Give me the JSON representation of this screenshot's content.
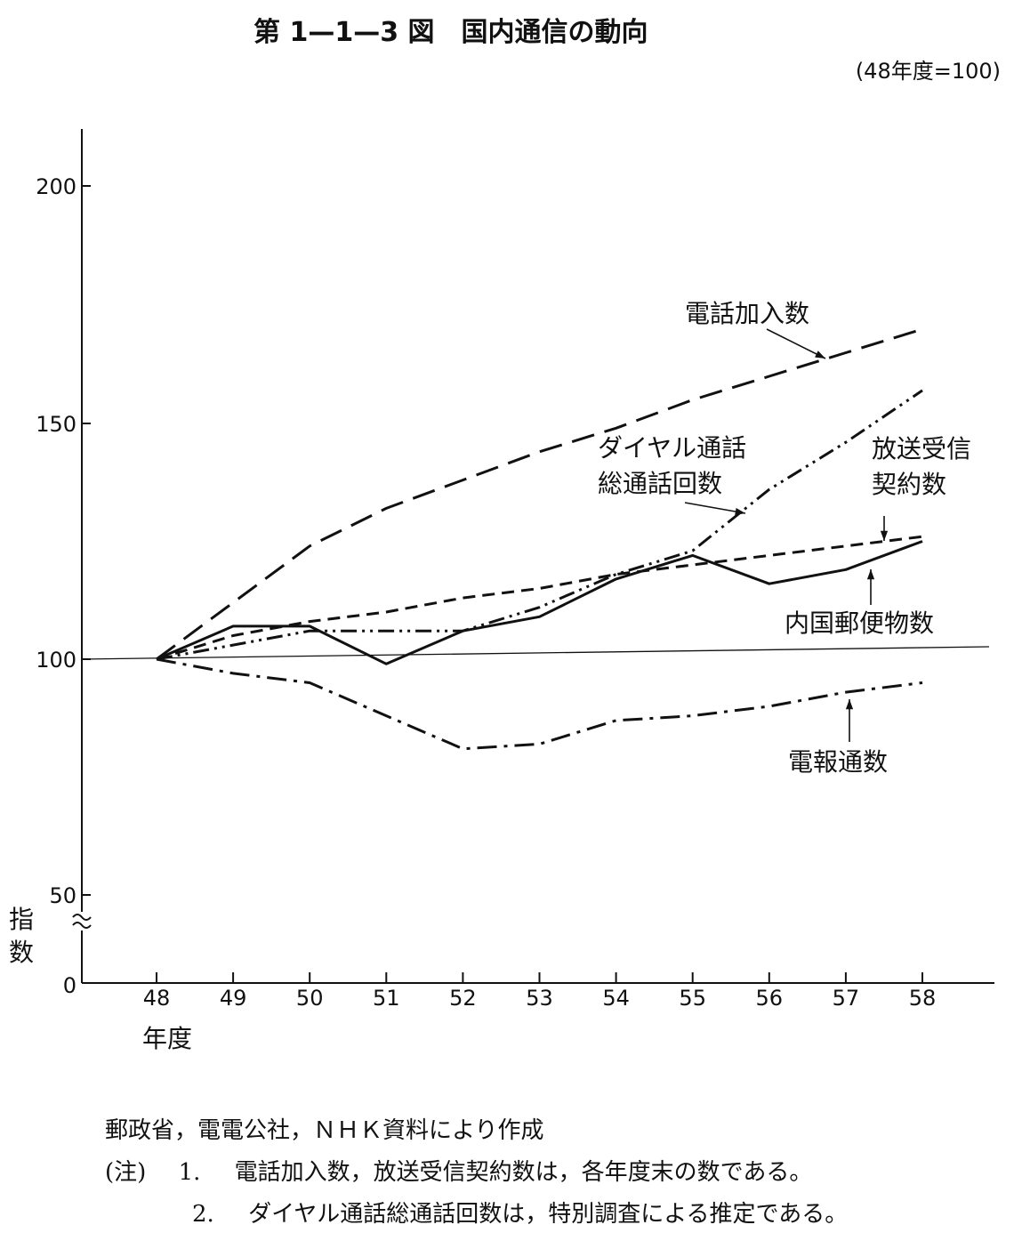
{
  "chart_data": {
    "type": "line",
    "title": "第 1—1—3 図　国内通信の動向",
    "unit_note": "(48年度=100)",
    "ylabel": "指数",
    "xlabel": "年度",
    "ylim": [
      0,
      210
    ],
    "y_ticks": [
      "0",
      "50",
      "100",
      "150",
      "200"
    ],
    "y_axis_break": true,
    "x": [
      "48",
      "49",
      "50",
      "51",
      "52",
      "53",
      "54",
      "55",
      "56",
      "57",
      "58"
    ],
    "series": [
      {
        "name": "電話加入数",
        "style": "long-dash",
        "values": [
          100,
          112,
          124,
          132,
          138,
          144,
          149,
          155,
          160,
          165,
          170
        ]
      },
      {
        "name": "ダイヤル通話総通話回数",
        "style": "dash-dot-dot",
        "values": [
          100,
          103,
          106,
          106,
          106,
          111,
          118,
          123,
          136,
          146,
          157
        ]
      },
      {
        "name": "放送受信契約数",
        "style": "short-dash",
        "values": [
          100,
          105,
          108,
          110,
          113,
          115,
          118,
          120,
          122,
          124,
          126
        ]
      },
      {
        "name": "内国郵便物数",
        "style": "solid",
        "values": [
          100,
          107,
          107,
          99,
          106,
          109,
          117,
          122,
          116,
          119,
          125
        ]
      },
      {
        "name": "電報通数",
        "style": "dash-dot",
        "values": [
          100,
          97,
          95,
          88,
          81,
          82,
          87,
          88,
          90,
          93,
          95
        ]
      }
    ]
  },
  "notes": {
    "source": "郵政省，電電公社，ＮＨＫ資料により作成",
    "note1_prefix": "(注)",
    "note1_num": "1.",
    "note1_text": "電話加入数，放送受信契約数は，各年度末の数である。",
    "note2_num": "2.",
    "note2_text": "ダイヤル通話総通話回数は，特別調査による推定である。"
  },
  "colors": {
    "ink": "#111111",
    "background": "#ffffff"
  }
}
